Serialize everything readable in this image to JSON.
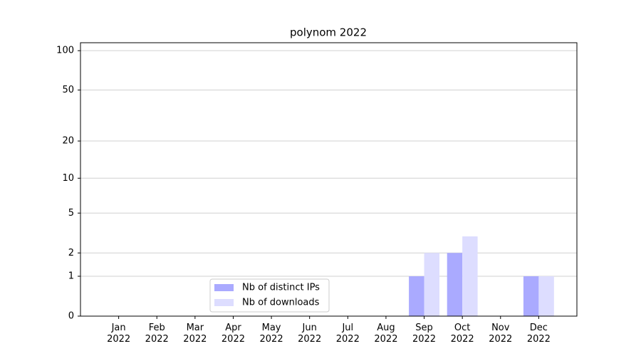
{
  "chart_data": {
    "type": "bar",
    "title": "polynom 2022",
    "categories": [
      "Jan\n2022",
      "Feb\n2022",
      "Mar\n2022",
      "Apr\n2022",
      "May\n2022",
      "Jun\n2022",
      "Jul\n2022",
      "Aug\n2022",
      "Sep\n2022",
      "Oct\n2022",
      "Nov\n2022",
      "Dec\n2022"
    ],
    "series": [
      {
        "name": "Nb of distinct IPs",
        "color": "#aaaaff",
        "values": [
          0,
          0,
          0,
          0,
          0,
          0,
          0,
          0,
          1,
          2,
          0,
          1
        ]
      },
      {
        "name": "Nb of downloads",
        "color": "#ddddff",
        "values": [
          0,
          0,
          0,
          0,
          0,
          0,
          0,
          0,
          2,
          3,
          0,
          1
        ]
      }
    ],
    "yscale": "log1p",
    "ylim": [
      0,
      115
    ],
    "yticks": [
      0,
      1,
      2,
      5,
      10,
      20,
      50,
      100
    ],
    "grid": true,
    "legend": "lower center"
  }
}
